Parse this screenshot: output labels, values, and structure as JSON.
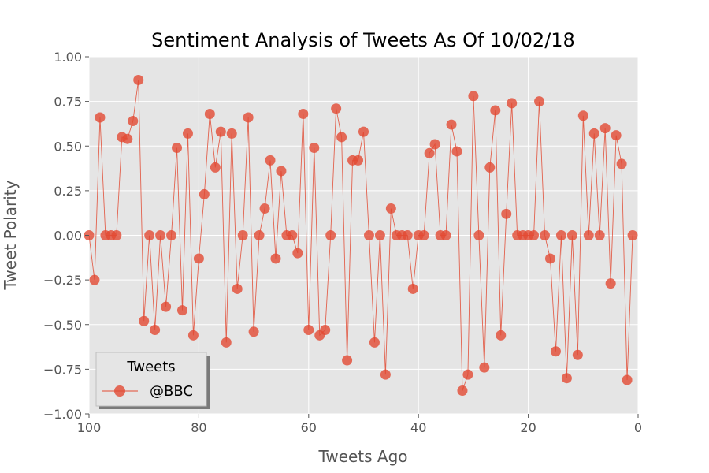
{
  "chart_data": {
    "type": "line",
    "title": "Sentiment Analysis of Tweets As Of 10/02/18",
    "xlabel": "Tweets Ago",
    "ylabel": "Tweet Polarity",
    "xlim": [
      100,
      0
    ],
    "ylim": [
      -1.0,
      1.0
    ],
    "xticks": [
      100,
      80,
      60,
      40,
      20,
      0
    ],
    "xtick_labels": [
      "100",
      "80",
      "60",
      "40",
      "20",
      "0"
    ],
    "yticks": [
      1.0,
      0.75,
      0.5,
      0.25,
      0.0,
      -0.25,
      -0.5,
      -0.75,
      -1.0
    ],
    "ytick_labels": [
      "1.00",
      "0.75",
      "0.50",
      "0.25",
      "0.00",
      "−0.25",
      "−0.50",
      "−0.75",
      "−1.00"
    ],
    "grid": true,
    "legend": {
      "title": "Tweets",
      "position": "lower-left"
    },
    "series": [
      {
        "name": "@BBC",
        "color": "#e24a33",
        "x": [
          100,
          99,
          98,
          97,
          96,
          95,
          94,
          93,
          92,
          91,
          90,
          89,
          88,
          87,
          86,
          85,
          84,
          83,
          82,
          81,
          80,
          79,
          78,
          77,
          76,
          75,
          74,
          73,
          72,
          71,
          70,
          69,
          68,
          67,
          66,
          65,
          64,
          63,
          62,
          61,
          60,
          59,
          58,
          57,
          56,
          55,
          54,
          53,
          52,
          51,
          50,
          49,
          48,
          47,
          46,
          45,
          44,
          43,
          42,
          41,
          40,
          39,
          38,
          37,
          36,
          35,
          34,
          33,
          32,
          31,
          30,
          29,
          28,
          27,
          26,
          25,
          24,
          23,
          22,
          21,
          20,
          19,
          18,
          17,
          16,
          15,
          14,
          13,
          12,
          11,
          10,
          9,
          8,
          7,
          6,
          5,
          4,
          3,
          2,
          1
        ],
        "y": [
          0,
          -0.25,
          0.66,
          0,
          0,
          0,
          0.55,
          0.54,
          0.64,
          0.87,
          -0.48,
          0,
          -0.53,
          0,
          -0.4,
          0,
          0.49,
          -0.42,
          0.57,
          -0.56,
          -0.13,
          0.23,
          0.68,
          0.38,
          0.58,
          -0.6,
          0.57,
          -0.3,
          0,
          0.66,
          -0.54,
          0,
          0.15,
          0.42,
          -0.13,
          0.36,
          0,
          0,
          -0.1,
          0.68,
          -0.53,
          0.49,
          -0.56,
          -0.53,
          0,
          0.71,
          0.55,
          -0.7,
          0.42,
          0.42,
          0.58,
          0,
          -0.6,
          0,
          -0.78,
          0.15,
          0,
          0,
          0,
          -0.3,
          0,
          0,
          0.46,
          0.51,
          0,
          0,
          0.62,
          0.47,
          -0.87,
          -0.78,
          0.78,
          0,
          -0.74,
          0.38,
          0.7,
          -0.56,
          0.12,
          0.74,
          0,
          0,
          0,
          0,
          0.75,
          0,
          -0.13,
          -0.65,
          0,
          -0.8,
          0,
          -0.67,
          0.67,
          0,
          0.57,
          0,
          0.6,
          -0.27,
          0.56,
          0.4,
          -0.81,
          0
        ]
      }
    ]
  }
}
